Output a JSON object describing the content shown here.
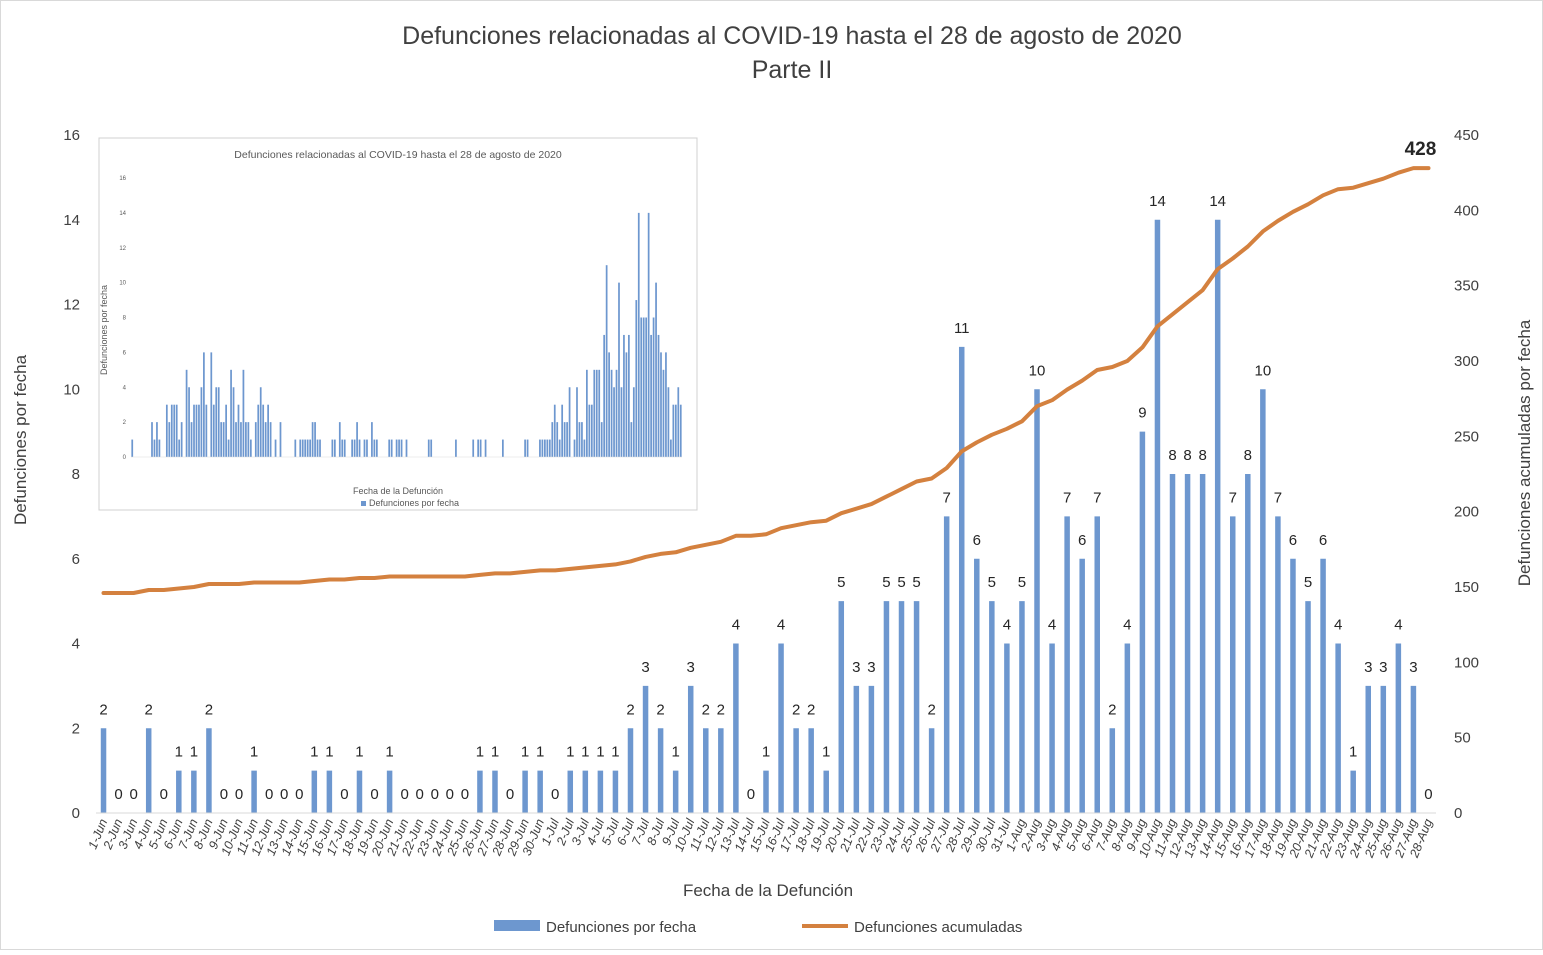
{
  "chart_data": {
    "type": "bar",
    "title": "Defunciones relacionadas al COVID-19 hasta el 28 de agosto de 2020",
    "subtitle": "Parte II",
    "xlabel": "Fecha de la Defunción",
    "ylabel": "Defunciones por fecha",
    "y2label": "Defunciones acumuladas por fecha",
    "ylim": [
      0,
      16
    ],
    "y2lim": [
      0,
      450
    ],
    "yticks": [
      "0",
      "2",
      "4",
      "6",
      "8",
      "10",
      "12",
      "14",
      "16"
    ],
    "y2ticks": [
      "0",
      "50",
      "100",
      "150",
      "200",
      "250",
      "300",
      "350",
      "400",
      "450"
    ],
    "categories": [
      "1-Jun",
      "2-Jun",
      "3-Jun",
      "4-Jun",
      "5-Jun",
      "6-Jun",
      "7-Jun",
      "8-Jun",
      "9-Jun",
      "10-Jun",
      "11-Jun",
      "12-Jun",
      "13-Jun",
      "14-Jun",
      "15-Jun",
      "16-Jun",
      "17-Jun",
      "18-Jun",
      "19-Jun",
      "20-Jun",
      "21-Jun",
      "22-Jun",
      "23-Jun",
      "24-Jun",
      "25-Jun",
      "26-Jun",
      "27-Jun",
      "28-Jun",
      "29-Jun",
      "30-Jun",
      "1-Jul",
      "2-Jul",
      "3-Jul",
      "4-Jul",
      "5-Jul",
      "6-Jul",
      "7-Jul",
      "8-Jul",
      "9-Jul",
      "10-Jul",
      "11-Jul",
      "12-Jul",
      "13-Jul",
      "14-Jul",
      "15-Jul",
      "16-Jul",
      "17-Jul",
      "18-Jul",
      "19-Jul",
      "20-Jul",
      "21-Jul",
      "22-Jul",
      "23-Jul",
      "24-Jul",
      "25-Jul",
      "26-Jul",
      "27-Jul",
      "28-Jul",
      "29-Jul",
      "30-Jul",
      "31-Jul",
      "1-Aug",
      "2-Aug",
      "3-Aug",
      "4-Aug",
      "5-Aug",
      "6-Aug",
      "7-Aug",
      "8-Aug",
      "9-Aug",
      "10-Aug",
      "11-Aug",
      "12-Aug",
      "13-Aug",
      "14-Aug",
      "15-Aug",
      "16-Aug",
      "17-Aug",
      "18-Aug",
      "19-Aug",
      "20-Aug",
      "21-Aug",
      "22-Aug",
      "23-Aug",
      "24-Aug",
      "25-Aug",
      "26-Aug",
      "27-Aug",
      "28-Aug"
    ],
    "series": [
      {
        "name": "Defunciones por fecha",
        "type": "bar",
        "axis": "left",
        "color": "#6d97cf",
        "values": [
          2,
          0,
          0,
          2,
          0,
          1,
          1,
          2,
          0,
          0,
          1,
          0,
          0,
          0,
          1,
          1,
          0,
          1,
          0,
          1,
          0,
          0,
          0,
          0,
          0,
          1,
          1,
          0,
          1,
          1,
          0,
          1,
          1,
          1,
          1,
          2,
          3,
          2,
          1,
          3,
          2,
          2,
          4,
          0,
          1,
          4,
          2,
          2,
          1,
          5,
          3,
          3,
          5,
          5,
          5,
          2,
          7,
          11,
          6,
          5,
          4,
          5,
          10,
          4,
          7,
          6,
          7,
          2,
          4,
          9,
          14,
          8,
          8,
          8,
          14,
          7,
          8,
          10,
          7,
          6,
          5,
          6,
          4,
          1,
          3,
          3,
          4,
          3,
          0
        ],
        "labels": [
          "2",
          "0",
          "0",
          "2",
          "0",
          "1",
          "1",
          "2",
          "0",
          "0",
          "1",
          "0",
          "0",
          "0",
          "1",
          "1",
          "0",
          "1",
          "0",
          "1",
          "0",
          "0",
          "0",
          "0",
          "0",
          "1",
          "1",
          "0",
          "1",
          "1",
          "0",
          "1",
          "1",
          "1",
          "1",
          "2",
          "3",
          "2",
          "1",
          "3",
          "2",
          "2",
          "4",
          "0",
          "1",
          "4",
          "2",
          "2",
          "1",
          "5",
          "3",
          "3",
          "5",
          "5",
          "5",
          "2",
          "7",
          "11",
          "6",
          "5",
          "4",
          "5",
          "10",
          "4",
          "7",
          "6",
          "7",
          "2",
          "4",
          "9",
          "14",
          "8",
          "8",
          "8",
          "14",
          "7",
          "8",
          "10",
          "7",
          "6",
          "5",
          "6",
          "4",
          "1",
          "3",
          "3",
          "4",
          "3",
          "0"
        ]
      },
      {
        "name": "Defunciones acumuladas",
        "type": "line",
        "axis": "right",
        "color": "#d4813f",
        "values": [
          146,
          146,
          146,
          148,
          148,
          149,
          150,
          152,
          152,
          152,
          153,
          153,
          153,
          153,
          154,
          155,
          155,
          156,
          156,
          157,
          157,
          157,
          157,
          157,
          157,
          158,
          159,
          159,
          160,
          161,
          161,
          162,
          163,
          164,
          165,
          167,
          170,
          172,
          173,
          176,
          178,
          180,
          184,
          184,
          185,
          189,
          191,
          193,
          194,
          199,
          202,
          205,
          210,
          215,
          220,
          222,
          229,
          240,
          246,
          251,
          255,
          260,
          270,
          274,
          281,
          287,
          294,
          296,
          300,
          309,
          323,
          331,
          339,
          347,
          361,
          368,
          376,
          386,
          393,
          399,
          404,
          410,
          414,
          415,
          418,
          421,
          425,
          428,
          428
        ],
        "end_label": "428"
      }
    ],
    "legend_position": "bottom",
    "grid": false,
    "inset": {
      "title": "Defunciones relacionadas al COVID-19 hasta el 28 de agosto de 2020",
      "xlabel": "Fecha de la Defunción",
      "ylabel": "Defunciones por fecha",
      "legend": "Defunciones por fecha",
      "yticks": [
        "0",
        "2",
        "4",
        "6",
        "8",
        "10",
        "12",
        "14",
        "16"
      ],
      "ylim": [
        0,
        16
      ],
      "values": [
        1,
        0,
        0,
        0,
        0,
        0,
        0,
        0,
        2,
        1,
        2,
        1,
        0,
        0,
        3,
        2,
        3,
        3,
        3,
        1,
        2,
        0,
        5,
        4,
        2,
        3,
        3,
        3,
        4,
        6,
        3,
        0,
        6,
        3,
        4,
        4,
        2,
        2,
        3,
        1,
        5,
        4,
        2,
        3,
        2,
        5,
        2,
        2,
        1,
        0,
        2,
        3,
        4,
        3,
        2,
        3,
        2,
        0,
        1,
        0,
        2,
        0,
        0,
        0,
        0,
        0,
        1,
        0,
        1,
        1,
        1,
        1,
        1,
        2,
        2,
        1,
        1,
        0,
        0,
        0,
        0,
        1,
        1,
        0,
        2,
        1,
        1,
        0,
        0,
        1,
        1,
        2,
        1,
        0,
        1,
        1,
        0,
        2,
        1,
        1,
        0,
        0,
        0,
        0,
        1,
        1,
        0,
        1,
        1,
        1,
        0,
        1,
        0,
        0,
        0,
        0,
        0,
        0,
        0,
        0,
        1,
        1,
        0,
        0,
        0,
        0,
        0,
        0,
        0,
        0,
        0,
        1,
        0,
        0,
        0,
        0,
        0,
        0,
        1,
        0,
        1,
        1,
        0,
        1,
        0,
        0,
        0,
        0,
        0,
        0,
        1,
        0,
        0,
        0,
        0,
        0,
        0,
        0,
        0,
        1,
        1,
        0,
        0,
        0,
        0,
        1,
        1,
        1,
        1,
        1,
        2,
        3,
        2,
        1,
        3,
        2,
        2,
        4,
        0,
        1,
        4,
        2,
        2,
        1,
        5,
        3,
        3,
        5,
        5,
        5,
        2,
        7,
        11,
        6,
        5,
        4,
        5,
        10,
        4,
        7,
        6,
        7,
        2,
        4,
        9,
        14,
        8,
        8,
        8,
        14,
        7,
        8,
        10,
        7,
        6,
        5,
        6,
        4,
        1,
        3,
        3,
        4,
        3
      ]
    }
  }
}
